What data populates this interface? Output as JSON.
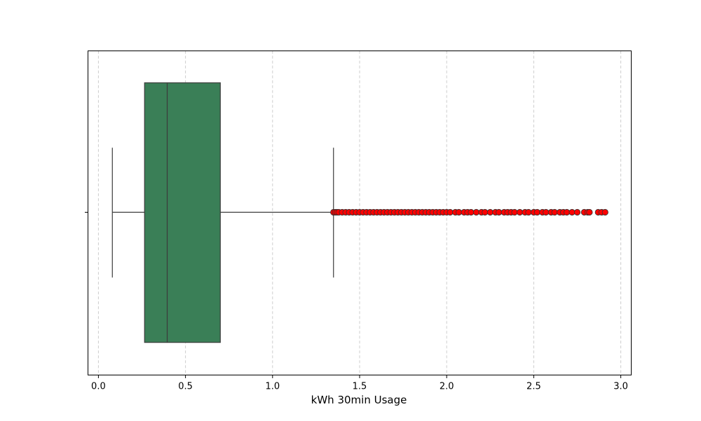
{
  "chart_data": {
    "type": "box",
    "orientation": "horizontal",
    "xlabel": "kWh 30min Usage",
    "ylabel": "",
    "xlim": [
      -0.06,
      3.06
    ],
    "xticks": [
      0.0,
      0.5,
      1.0,
      1.5,
      2.0,
      2.5,
      3.0
    ],
    "xtick_labels": [
      "0.0",
      "0.5",
      "1.0",
      "1.5",
      "2.0",
      "2.5",
      "3.0"
    ],
    "grid": "x-axis dashed",
    "box_color": "#3a7f57",
    "outlier_color": "#ff0000",
    "line_color": "#3b3b3b",
    "box": {
      "whisker_low": 0.08,
      "q1": 0.265,
      "median": 0.395,
      "q3": 0.7,
      "whisker_high": 1.35
    },
    "outliers": [
      1.35,
      1.36,
      1.37,
      1.38,
      1.4,
      1.42,
      1.44,
      1.46,
      1.48,
      1.5,
      1.52,
      1.54,
      1.56,
      1.58,
      1.6,
      1.62,
      1.64,
      1.66,
      1.68,
      1.7,
      1.72,
      1.74,
      1.76,
      1.78,
      1.8,
      1.82,
      1.84,
      1.86,
      1.88,
      1.9,
      1.92,
      1.94,
      1.96,
      1.98,
      2.0,
      2.02,
      2.05,
      2.07,
      2.1,
      2.12,
      2.14,
      2.17,
      2.2,
      2.22,
      2.25,
      2.28,
      2.3,
      2.33,
      2.35,
      2.37,
      2.39,
      2.42,
      2.45,
      2.47,
      2.5,
      2.52,
      2.55,
      2.57,
      2.6,
      2.62,
      2.65,
      2.67,
      2.69,
      2.72,
      2.75,
      2.79,
      2.81,
      2.82,
      2.87,
      2.89,
      2.91
    ]
  }
}
